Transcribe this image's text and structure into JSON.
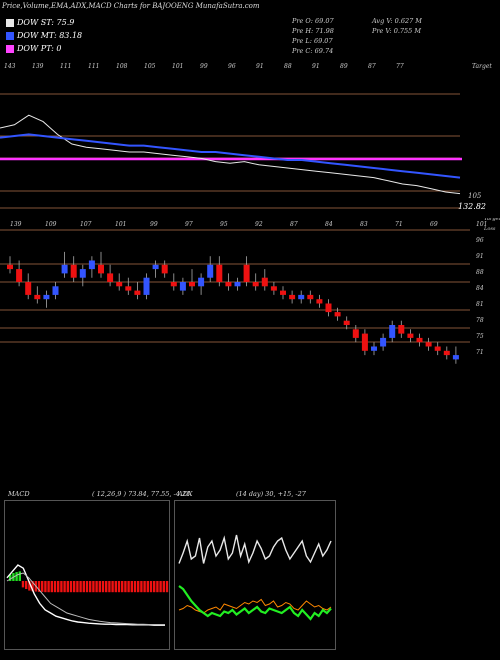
{
  "header": {
    "title": "Price,Volume,EMA,ADX,MACD Charts for BAJOOENG MunafaSutra.com"
  },
  "legend": [
    {
      "label": "DOW ST: 75.9",
      "color": "#e8e8e8"
    },
    {
      "label": "DOW MT: 83.18",
      "color": "#3355ff"
    },
    {
      "label": "DOW PT: 0",
      "color": "#ff44ff"
    }
  ],
  "ohlc": {
    "open": "Pre O: 69.07",
    "high": "Pre H: 71.98",
    "low": "Pre L: 69.07",
    "close": "Pre C: 69.74",
    "avg_vol": "Avg V: 0.627 M",
    "pre_vol": "Pre V: 0.755 M"
  },
  "colors": {
    "up": "#3355ff",
    "down": "#ee1111",
    "ema_short": "#e8e8e8",
    "ema_mid": "#3355ff",
    "dow_pt": "#ff33ff",
    "hline": "#b0704a",
    "adx": "#e8e8e8",
    "plus_di": "#22ee22",
    "minus_di": "#ff8800"
  },
  "chart_data": [
    {
      "type": "line",
      "name": "EMA panel",
      "top_labels": [
        "143",
        "139",
        "111",
        "111",
        "108",
        "105",
        "101",
        "99",
        "96",
        "91",
        "88",
        "91",
        "89",
        "87",
        "77",
        "Target"
      ],
      "right_labels": [
        "105",
        "132.82"
      ],
      "series": [
        {
          "name": "DOW ST",
          "values": [
            110,
            112,
            118,
            114,
            106,
            100,
            98,
            97,
            96,
            95,
            95,
            94,
            93,
            92,
            91,
            89,
            88,
            89,
            87,
            86,
            85,
            84,
            83,
            82,
            81,
            80,
            79,
            77,
            75,
            74,
            72,
            70,
            69
          ]
        },
        {
          "name": "DOW MT",
          "values": [
            104,
            105,
            106,
            105,
            104,
            103,
            102,
            101,
            100,
            99,
            99,
            98,
            97,
            96,
            95,
            95,
            94,
            93,
            92,
            91,
            90,
            90,
            89,
            88,
            87,
            86,
            85,
            84,
            83,
            82,
            81,
            80,
            79
          ]
        },
        {
          "name": "DOW PT",
          "values": [
            99,
            99,
            99,
            99,
            99,
            99,
            99,
            99,
            99,
            99,
            99,
            99,
            99,
            99,
            99,
            99,
            99,
            99,
            99,
            99,
            99,
            99,
            99,
            99,
            99,
            99,
            99,
            99,
            99,
            99,
            99,
            99,
            99
          ]
        }
      ]
    },
    {
      "type": "candlestick",
      "name": "Price panel",
      "top_labels": [
        "139",
        "109",
        "107",
        "101",
        "99",
        "97",
        "95",
        "92",
        "87",
        "84",
        "83",
        "71",
        "69"
      ],
      "right_labels": [
        "101",
        "96",
        "91",
        "88",
        "84",
        "81",
        "78",
        "75",
        "71"
      ],
      "right_suffix": [
        "Target",
        "Loss"
      ],
      "candles": [
        {
          "o": 92,
          "h": 94,
          "l": 90,
          "c": 91
        },
        {
          "o": 91,
          "h": 93,
          "l": 87,
          "c": 88
        },
        {
          "o": 88,
          "h": 90,
          "l": 84,
          "c": 85
        },
        {
          "o": 85,
          "h": 87,
          "l": 83,
          "c": 84
        },
        {
          "o": 84,
          "h": 86,
          "l": 82,
          "c": 85
        },
        {
          "o": 85,
          "h": 88,
          "l": 84,
          "c": 87
        },
        {
          "o": 90,
          "h": 95,
          "l": 89,
          "c": 92
        },
        {
          "o": 92,
          "h": 94,
          "l": 88,
          "c": 89
        },
        {
          "o": 89,
          "h": 92,
          "l": 87,
          "c": 91
        },
        {
          "o": 91,
          "h": 94,
          "l": 89,
          "c": 93
        },
        {
          "o": 92,
          "h": 95,
          "l": 89,
          "c": 90
        },
        {
          "o": 90,
          "h": 92,
          "l": 87,
          "c": 88
        },
        {
          "o": 88,
          "h": 90,
          "l": 86,
          "c": 87
        },
        {
          "o": 87,
          "h": 89,
          "l": 85,
          "c": 86
        },
        {
          "o": 86,
          "h": 88,
          "l": 84,
          "c": 85
        },
        {
          "o": 85,
          "h": 90,
          "l": 84,
          "c": 89
        },
        {
          "o": 91,
          "h": 93,
          "l": 89,
          "c": 92
        },
        {
          "o": 92,
          "h": 93,
          "l": 89,
          "c": 90
        },
        {
          "o": 88,
          "h": 90,
          "l": 86,
          "c": 87
        },
        {
          "o": 86,
          "h": 89,
          "l": 85,
          "c": 88
        },
        {
          "o": 88,
          "h": 91,
          "l": 86,
          "c": 87
        },
        {
          "o": 87,
          "h": 90,
          "l": 85,
          "c": 89
        },
        {
          "o": 89,
          "h": 94,
          "l": 88,
          "c": 92
        },
        {
          "o": 92,
          "h": 94,
          "l": 87,
          "c": 88
        },
        {
          "o": 88,
          "h": 90,
          "l": 86,
          "c": 87
        },
        {
          "o": 87,
          "h": 89,
          "l": 86,
          "c": 88
        },
        {
          "o": 92,
          "h": 94,
          "l": 87,
          "c": 88
        },
        {
          "o": 88,
          "h": 90,
          "l": 86,
          "c": 87
        },
        {
          "o": 89,
          "h": 91,
          "l": 86,
          "c": 87
        },
        {
          "o": 87,
          "h": 88,
          "l": 85,
          "c": 86
        },
        {
          "o": 86,
          "h": 87,
          "l": 84,
          "c": 85
        },
        {
          "o": 85,
          "h": 86,
          "l": 83,
          "c": 84
        },
        {
          "o": 84,
          "h": 86,
          "l": 83,
          "c": 85
        },
        {
          "o": 85,
          "h": 86,
          "l": 83,
          "c": 84
        },
        {
          "o": 84,
          "h": 85,
          "l": 82,
          "c": 83
        },
        {
          "o": 83,
          "h": 84,
          "l": 80,
          "c": 81
        },
        {
          "o": 81,
          "h": 82,
          "l": 79,
          "c": 80
        },
        {
          "o": 79,
          "h": 80,
          "l": 77,
          "c": 78
        },
        {
          "o": 77,
          "h": 78,
          "l": 74,
          "c": 75
        },
        {
          "o": 76,
          "h": 77,
          "l": 71,
          "c": 72
        },
        {
          "o": 72,
          "h": 74,
          "l": 71,
          "c": 73
        },
        {
          "o": 73,
          "h": 76,
          "l": 72,
          "c": 75
        },
        {
          "o": 75,
          "h": 79,
          "l": 74,
          "c": 78
        },
        {
          "o": 78,
          "h": 79,
          "l": 75,
          "c": 76
        },
        {
          "o": 76,
          "h": 77,
          "l": 74,
          "c": 75
        },
        {
          "o": 75,
          "h": 76,
          "l": 73,
          "c": 74
        },
        {
          "o": 74,
          "h": 75,
          "l": 72,
          "c": 73
        },
        {
          "o": 73,
          "h": 74,
          "l": 71,
          "c": 72
        },
        {
          "o": 72,
          "h": 73,
          "l": 70,
          "c": 71
        },
        {
          "o": 70,
          "h": 73,
          "l": 69,
          "c": 71
        }
      ]
    },
    {
      "type": "bar",
      "name": "MACD",
      "label": "MACD",
      "params": "( 12,26,9 ) 73.84,  77.55,  -4.21",
      "histogram": [
        2,
        2.5,
        2.8,
        3,
        -2,
        -2.5,
        -3,
        -3.2,
        -3.3,
        -3.4,
        -3.4,
        -3.5,
        -3.5,
        -3.5,
        -3.5,
        -3.5,
        -3.5,
        -3.5,
        -3.5,
        -3.5,
        -3.5,
        -3.5,
        -3.5,
        -3.5,
        -3.5,
        -3.5,
        -3.5,
        -3.5,
        -3.5,
        -3.5,
        -3.5,
        -3.5,
        -3.5,
        -3.5,
        -3.5,
        -3.5,
        -3.5,
        -3.5,
        -3.5,
        -3.5,
        -3.5,
        -3.5,
        -3.5,
        -3.5,
        -3.5,
        -3.5,
        -3.5,
        -3.5,
        -3.5,
        -3.5
      ],
      "series": [
        {
          "name": "macd",
          "values": [
            1,
            3,
            5,
            4,
            0,
            -4,
            -7,
            -9,
            -10,
            -11,
            -11.5,
            -12,
            -12.5,
            -12.8,
            -13,
            -13.2,
            -13.3,
            -13.4,
            -13.5,
            -13.5,
            -13.6,
            -13.6,
            -13.6,
            -13.7,
            -13.7,
            -13.7,
            -13.7,
            -13.8,
            -13.8,
            -13.8
          ]
        },
        {
          "name": "signal",
          "values": [
            0,
            1,
            2,
            2.5,
            1,
            -1,
            -3,
            -5,
            -7,
            -8,
            -9,
            -10,
            -10.5,
            -11,
            -11.5,
            -12,
            -12.3,
            -12.6,
            -12.8,
            -13,
            -13.1,
            -13.2,
            -13.3,
            -13.4,
            -13.5,
            -13.5,
            -13.6,
            -13.6,
            -13.6,
            -13.6
          ]
        }
      ]
    },
    {
      "type": "line",
      "name": "ADX",
      "label": "ADX",
      "params": "(14 day) 30, +15, -27",
      "series": [
        {
          "name": "adx",
          "values": [
            55,
            62,
            70,
            58,
            60,
            72,
            55,
            66,
            70,
            60,
            64,
            72,
            58,
            62,
            74,
            60,
            68,
            56,
            62,
            70,
            65,
            58,
            60,
            66,
            70,
            72,
            64,
            58,
            62,
            66,
            70,
            60,
            56,
            62,
            68,
            60,
            64,
            70
          ]
        },
        {
          "name": "+di",
          "values": [
            40,
            38,
            34,
            30,
            27,
            24,
            22,
            20,
            22,
            21,
            20,
            23,
            22,
            24,
            21,
            23,
            25,
            22,
            24,
            26,
            23,
            22,
            25,
            24,
            23,
            22,
            24,
            26,
            22,
            20,
            24,
            21,
            18,
            22,
            20,
            24,
            22,
            25
          ]
        },
        {
          "name": "-di",
          "values": [
            24,
            25,
            27,
            26,
            24,
            23,
            22,
            24,
            25,
            26,
            24,
            28,
            27,
            26,
            25,
            27,
            29,
            28,
            30,
            29,
            31,
            27,
            28,
            30,
            26,
            27,
            29,
            28,
            25,
            24,
            27,
            30,
            28,
            26,
            27,
            25,
            24,
            26
          ]
        }
      ]
    }
  ]
}
